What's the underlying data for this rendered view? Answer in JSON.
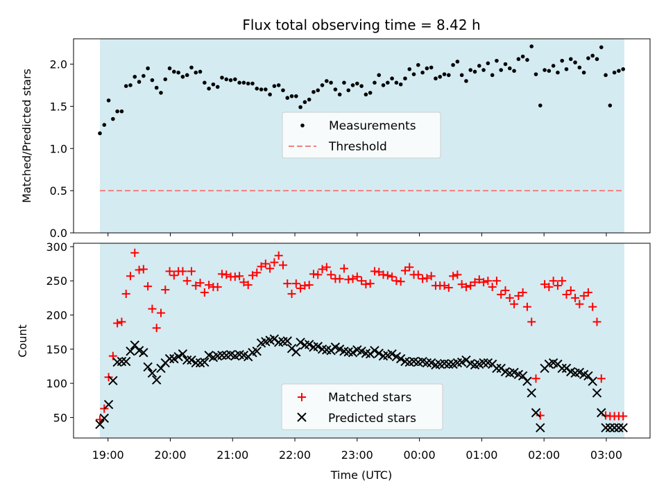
{
  "chart_data": [
    {
      "type": "scatter",
      "title": "Flux total observing time = 8.42 h",
      "xlabel": "",
      "ylabel": "Matched/Predicted stars",
      "ylim": [
        0,
        2.3
      ],
      "yticks": [
        "0.0",
        "0.5",
        "1.0",
        "1.5",
        "2.0"
      ],
      "ytick_values": [
        0,
        0.5,
        1.0,
        1.5,
        2.0
      ],
      "observing_window_color": "#d4ebf1",
      "legend_position": "center",
      "threshold": {
        "name": "Threshold",
        "value": 0.5,
        "color": "#f08080",
        "style": "dashed"
      },
      "series": [
        {
          "name": "Measurements",
          "color": "#000000",
          "marker": "dot",
          "x": [
            0.0,
            0.07,
            0.14,
            0.21,
            0.28,
            0.35,
            0.42,
            0.49,
            0.56,
            0.63,
            0.7,
            0.77,
            0.84,
            0.91,
            0.98,
            1.05,
            1.12,
            1.19,
            1.26,
            1.33,
            1.4,
            1.47,
            1.54,
            1.61,
            1.68,
            1.75,
            1.82,
            1.89,
            1.96,
            2.03,
            2.1,
            2.17,
            2.24,
            2.31,
            2.38,
            2.45,
            2.52,
            2.59,
            2.66,
            2.73,
            2.8,
            2.87,
            2.94,
            3.01,
            3.08,
            3.15,
            3.22,
            3.29,
            3.36,
            3.43,
            3.5,
            3.57,
            3.64,
            3.71,
            3.78,
            3.85,
            3.92,
            3.99,
            4.06,
            4.13,
            4.2,
            4.27,
            4.34,
            4.41,
            4.48,
            4.55,
            4.62,
            4.69,
            4.76,
            4.83,
            4.9,
            4.97,
            5.04,
            5.11,
            5.18,
            5.25,
            5.32,
            5.39,
            5.46,
            5.53,
            5.6,
            5.67,
            5.74,
            5.81,
            5.88,
            5.95,
            6.02,
            6.09,
            6.16,
            6.23,
            6.3,
            6.37,
            6.44,
            6.51,
            6.58,
            6.65,
            6.72,
            6.79,
            6.86,
            6.93,
            7.0,
            7.07,
            7.14,
            7.21,
            7.28,
            7.35,
            7.42,
            7.49,
            7.56,
            7.63,
            7.7,
            7.77,
            7.84,
            7.91,
            7.98,
            8.05,
            8.12,
            8.19,
            8.26,
            8.33,
            8.4
          ],
          "values": [
            1.18,
            1.28,
            1.57,
            1.35,
            1.44,
            1.44,
            1.74,
            1.75,
            1.85,
            1.79,
            1.86,
            1.95,
            1.81,
            1.72,
            1.66,
            1.82,
            1.95,
            1.91,
            1.9,
            1.85,
            1.87,
            1.96,
            1.9,
            1.91,
            1.78,
            1.71,
            1.76,
            1.73,
            1.84,
            1.82,
            1.81,
            1.82,
            1.78,
            1.78,
            1.77,
            1.77,
            1.71,
            1.7,
            1.7,
            1.64,
            1.74,
            1.75,
            1.69,
            1.6,
            1.62,
            1.62,
            1.49,
            1.55,
            1.58,
            1.67,
            1.69,
            1.75,
            1.8,
            1.78,
            1.7,
            1.64,
            1.78,
            1.69,
            1.75,
            1.77,
            1.74,
            1.64,
            1.66,
            1.78,
            1.87,
            1.75,
            1.78,
            1.83,
            1.78,
            1.76,
            1.83,
            1.94,
            1.88,
            1.99,
            1.9,
            1.95,
            1.96,
            1.83,
            1.85,
            1.88,
            1.87,
            1.99,
            2.03,
            1.87,
            1.8,
            1.93,
            1.91,
            1.98,
            1.93,
            2.01,
            1.87,
            2.04,
            1.93,
            2.0,
            1.95,
            1.92,
            2.06,
            2.09,
            2.05,
            2.21,
            1.88,
            1.51,
            1.93,
            1.92,
            1.98,
            1.9,
            2.04,
            1.94,
            2.06,
            2.02,
            1.96,
            1.9,
            2.07,
            2.1,
            2.06,
            2.2,
            1.87,
            1.51,
            1.9,
            1.92,
            1.94
          ]
        }
      ]
    },
    {
      "type": "scatter",
      "xlabel": "Time (UTC)",
      "ylabel": "Count",
      "ylim": [
        20,
        305
      ],
      "yticks": [
        "50",
        "100",
        "150",
        "200",
        "250",
        "300"
      ],
      "ytick_values": [
        50,
        100,
        150,
        200,
        250,
        300
      ],
      "xticks": [
        "19:00",
        "20:00",
        "21:00",
        "22:00",
        "23:00",
        "00:00",
        "01:00",
        "02:00",
        "03:00"
      ],
      "xtick_hours_after_start": [
        0.13,
        1.13,
        2.13,
        3.13,
        4.13,
        5.13,
        6.13,
        7.13,
        8.13
      ],
      "observing_window_color": "#d4ebf1",
      "legend_position": "lower center",
      "series": [
        {
          "name": "Matched stars",
          "color": "#ff0000",
          "marker": "plus",
          "x": [
            0.0,
            0.07,
            0.14,
            0.21,
            0.28,
            0.35,
            0.42,
            0.49,
            0.56,
            0.63,
            0.7,
            0.77,
            0.84,
            0.91,
            0.98,
            1.05,
            1.12,
            1.19,
            1.26,
            1.33,
            1.4,
            1.47,
            1.54,
            1.61,
            1.68,
            1.75,
            1.82,
            1.89,
            1.96,
            2.03,
            2.1,
            2.17,
            2.24,
            2.31,
            2.38,
            2.45,
            2.52,
            2.59,
            2.66,
            2.73,
            2.8,
            2.87,
            2.94,
            3.01,
            3.08,
            3.15,
            3.22,
            3.29,
            3.36,
            3.43,
            3.5,
            3.57,
            3.64,
            3.71,
            3.78,
            3.85,
            3.92,
            3.99,
            4.06,
            4.13,
            4.2,
            4.27,
            4.34,
            4.41,
            4.48,
            4.55,
            4.62,
            4.69,
            4.76,
            4.83,
            4.9,
            4.97,
            5.04,
            5.11,
            5.18,
            5.25,
            5.32,
            5.39,
            5.46,
            5.53,
            5.6,
            5.67,
            5.74,
            5.81,
            5.88,
            5.95,
            6.02,
            6.09,
            6.16,
            6.23,
            6.3,
            6.37,
            6.44,
            6.51,
            6.58,
            6.65,
            6.72,
            6.79,
            6.86,
            6.93,
            7.0,
            7.07,
            7.14,
            7.21,
            7.28,
            7.35,
            7.42,
            7.49,
            7.56,
            7.63,
            7.7,
            7.77,
            7.84,
            7.91,
            7.98,
            8.05,
            8.12,
            8.19,
            8.26,
            8.33,
            8.4
          ],
          "values": [
            47,
            63,
            109,
            140,
            188,
            190,
            231,
            257,
            291,
            266,
            267,
            242,
            209,
            181,
            203,
            237,
            264,
            258,
            264,
            264,
            250,
            264,
            243,
            247,
            233,
            244,
            241,
            241,
            260,
            259,
            256,
            256,
            257,
            248,
            244,
            258,
            262,
            271,
            275,
            268,
            277,
            287,
            273,
            246,
            231,
            246,
            239,
            243,
            244,
            260,
            259,
            267,
            270,
            259,
            253,
            253,
            268,
            252,
            253,
            256,
            250,
            245,
            246,
            264,
            263,
            259,
            258,
            256,
            250,
            249,
            265,
            270,
            259,
            259,
            253,
            254,
            257,
            243,
            243,
            243,
            240,
            257,
            259,
            245,
            241,
            243,
            248,
            252,
            248,
            250,
            241,
            250,
            230,
            236,
            225,
            216,
            228,
            233,
            212,
            190,
            107,
            53,
            245,
            241,
            250,
            243,
            250,
            230,
            236,
            225,
            216,
            228,
            233,
            212,
            190,
            107,
            53,
            52,
            52,
            52,
            52
          ]
        },
        {
          "name": "Predicted stars",
          "color": "#000000",
          "marker": "x",
          "x": [
            0.0,
            0.07,
            0.14,
            0.21,
            0.28,
            0.35,
            0.42,
            0.49,
            0.56,
            0.63,
            0.7,
            0.77,
            0.84,
            0.91,
            0.98,
            1.05,
            1.12,
            1.19,
            1.26,
            1.33,
            1.4,
            1.47,
            1.54,
            1.61,
            1.68,
            1.75,
            1.82,
            1.89,
            1.96,
            2.03,
            2.1,
            2.17,
            2.24,
            2.31,
            2.38,
            2.45,
            2.52,
            2.59,
            2.66,
            2.73,
            2.8,
            2.87,
            2.94,
            3.01,
            3.08,
            3.15,
            3.22,
            3.29,
            3.36,
            3.43,
            3.5,
            3.57,
            3.64,
            3.71,
            3.78,
            3.85,
            3.92,
            3.99,
            4.06,
            4.13,
            4.2,
            4.27,
            4.34,
            4.41,
            4.48,
            4.55,
            4.62,
            4.69,
            4.76,
            4.83,
            4.9,
            4.97,
            5.04,
            5.11,
            5.18,
            5.25,
            5.32,
            5.39,
            5.46,
            5.53,
            5.6,
            5.67,
            5.74,
            5.81,
            5.88,
            5.95,
            6.02,
            6.09,
            6.16,
            6.23,
            6.3,
            6.37,
            6.44,
            6.51,
            6.58,
            6.65,
            6.72,
            6.79,
            6.86,
            6.93,
            7.0,
            7.07,
            7.14,
            7.21,
            7.28,
            7.35,
            7.42,
            7.49,
            7.56,
            7.63,
            7.7,
            7.77,
            7.84,
            7.91,
            7.98,
            8.05,
            8.12,
            8.19,
            8.26,
            8.33,
            8.4
          ],
          "values": [
            40,
            49,
            69,
            104,
            131,
            132,
            132,
            147,
            156,
            148,
            145,
            124,
            115,
            105,
            122,
            130,
            136,
            136,
            139,
            143,
            134,
            134,
            130,
            130,
            131,
            141,
            138,
            140,
            141,
            141,
            142,
            140,
            142,
            141,
            139,
            145,
            147,
            159,
            161,
            163,
            165,
            160,
            161,
            162,
            151,
            146,
            160,
            156,
            157,
            153,
            154,
            150,
            149,
            148,
            153,
            150,
            147,
            146,
            145,
            149,
            147,
            144,
            143,
            148,
            144,
            140,
            141,
            143,
            139,
            136,
            132,
            131,
            132,
            131,
            132,
            130,
            130,
            127,
            128,
            129,
            128,
            128,
            130,
            131,
            134,
            129,
            127,
            128,
            130,
            130,
            128,
            122,
            122,
            117,
            115,
            116,
            113,
            111,
            103,
            86,
            57,
            35,
            122,
            128,
            130,
            128,
            122,
            122,
            117,
            115,
            116,
            113,
            111,
            103,
            86,
            57,
            35,
            35,
            35,
            35,
            35
          ]
        }
      ]
    }
  ]
}
